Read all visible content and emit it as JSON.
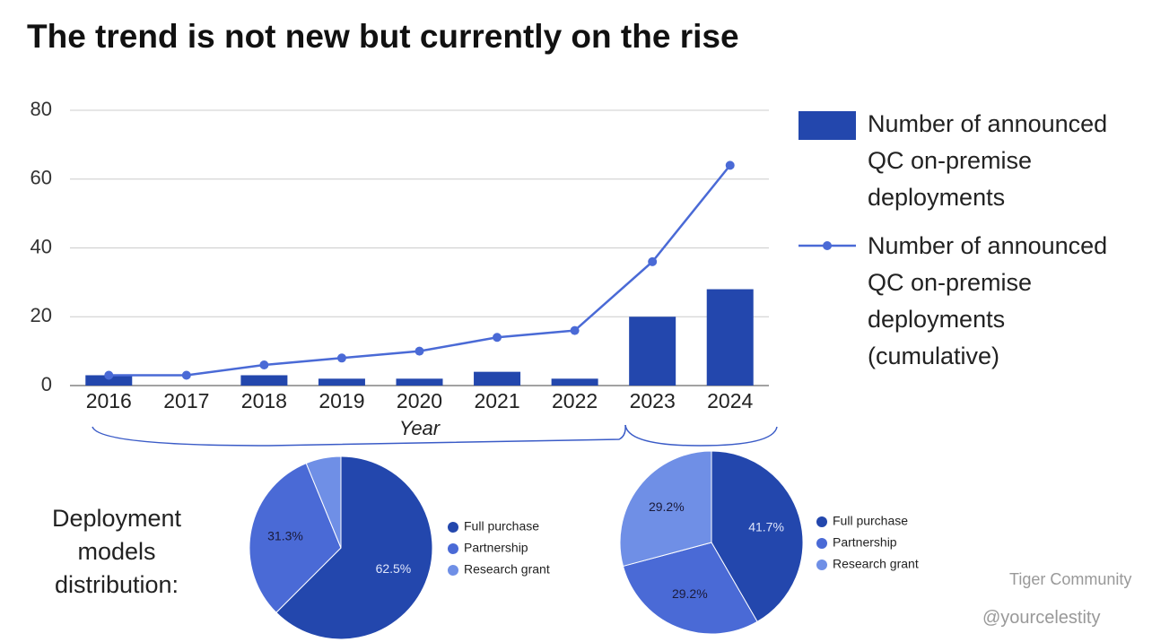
{
  "title": "The trend is not new but currently on the rise",
  "side_label": "Deployment models distribution:",
  "watermark": [
    "Tiger Community",
    "@yourcelestity"
  ],
  "chart_data": [
    {
      "type": "combo",
      "x_label": "Year",
      "categories": [
        "2016",
        "2017",
        "2018",
        "2019",
        "2020",
        "2021",
        "2022",
        "2023",
        "2024"
      ],
      "series": [
        {
          "name": "Number of announced QC on-premise deployments",
          "kind": "bar",
          "color": "#2347ad",
          "values": [
            3,
            0,
            3,
            2,
            2,
            4,
            2,
            20,
            28
          ]
        },
        {
          "name": "Number of announced QC on-premise deployments (cumulative)",
          "kind": "line",
          "color": "#4a6ad6",
          "values": [
            3,
            3,
            6,
            8,
            10,
            14,
            16,
            36,
            64
          ]
        }
      ],
      "ylim": [
        0,
        80
      ],
      "yticks": [
        0,
        20,
        40,
        60,
        80
      ],
      "grid": true,
      "legend": "right"
    },
    {
      "type": "pie",
      "categories": [
        "Full purchase",
        "Partnership",
        "Research grant"
      ],
      "values": [
        62.5,
        31.3,
        6.2
      ],
      "value_labels": [
        "62.5%",
        "31.3%",
        null
      ],
      "colors": [
        "#2347ad",
        "#4a6ad6",
        "#6f8fe6"
      ]
    },
    {
      "type": "pie",
      "categories": [
        "Full purchase",
        "Partnership",
        "Research grant"
      ],
      "values": [
        41.7,
        29.2,
        29.2
      ],
      "value_labels": [
        "41.7%",
        "29.2%",
        "29.2%"
      ],
      "colors": [
        "#2347ad",
        "#4a6ad6",
        "#6f8fe6"
      ]
    }
  ]
}
